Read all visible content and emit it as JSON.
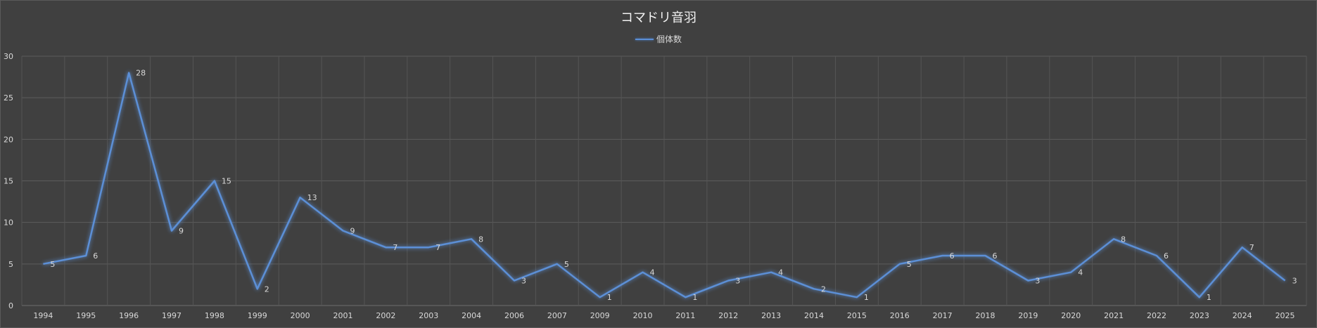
{
  "chart_data": {
    "type": "line",
    "title": "コマドリ音羽",
    "xlabel": "",
    "ylabel": "",
    "ylim": [
      0,
      30
    ],
    "yticks": [
      "0",
      "5",
      "10",
      "15",
      "20",
      "25",
      "30"
    ],
    "grid": true,
    "legend_position": "top",
    "line_color": "#5b8fd6",
    "categories": [
      "1994",
      "1995",
      "1996",
      "1997",
      "1998",
      "1999",
      "2000",
      "2001",
      "2002",
      "2003",
      "2004",
      "2006",
      "2007",
      "2009",
      "2010",
      "2011",
      "2012",
      "2013",
      "2014",
      "2015",
      "2016",
      "2017",
      "2018",
      "2019",
      "2020",
      "2021",
      "2022",
      "2023",
      "2024",
      "2025"
    ],
    "series": [
      {
        "name": "個体数",
        "values": [
          5,
          6,
          28,
          9,
          15,
          2,
          13,
          9,
          7,
          7,
          8,
          3,
          5,
          1,
          4,
          1,
          3,
          4,
          2,
          1,
          5,
          6,
          6,
          3,
          4,
          8,
          6,
          1,
          7,
          3
        ]
      }
    ]
  }
}
